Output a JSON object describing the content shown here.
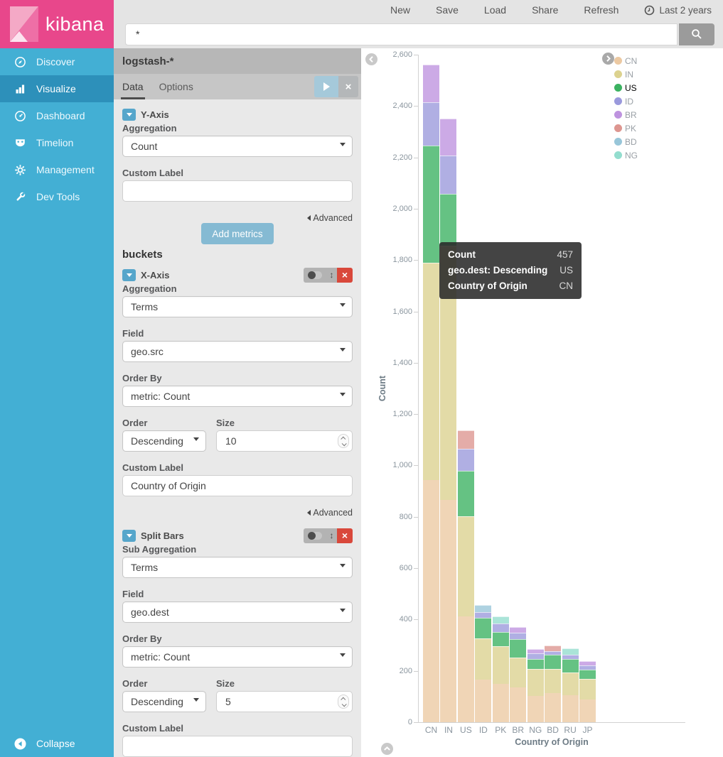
{
  "brand": "kibana",
  "topnav": {
    "items": [
      "New",
      "Save",
      "Load",
      "Share",
      "Refresh"
    ],
    "time_label": "Last 2 years"
  },
  "search": {
    "value": "*"
  },
  "sidebar": {
    "items": [
      {
        "label": "Discover",
        "icon": "compass-icon",
        "active": false
      },
      {
        "label": "Visualize",
        "icon": "bar-chart-icon",
        "active": true
      },
      {
        "label": "Dashboard",
        "icon": "dashboard-icon",
        "active": false
      },
      {
        "label": "Timelion",
        "icon": "mask-icon",
        "active": false
      },
      {
        "label": "Management",
        "icon": "gear-icon",
        "active": false
      },
      {
        "label": "Dev Tools",
        "icon": "wrench-icon",
        "active": false
      }
    ],
    "collapse_label": "Collapse"
  },
  "config": {
    "index_pattern": "logstash-*",
    "tabs": [
      {
        "label": "Data",
        "active": true
      },
      {
        "label": "Options",
        "active": false
      }
    ],
    "metrics": {
      "section_title": "Y-Axis",
      "aggregation_label": "Aggregation",
      "aggregation_value": "Count",
      "custom_label_label": "Custom Label",
      "custom_label_value": "",
      "advanced_label": "Advanced",
      "add_metrics_label": "Add metrics"
    },
    "buckets": {
      "heading": "buckets",
      "x_axis": {
        "section_title": "X-Axis",
        "aggregation_label": "Aggregation",
        "aggregation_value": "Terms",
        "field_label": "Field",
        "field_value": "geo.src",
        "order_by_label": "Order By",
        "order_by_value": "metric: Count",
        "order_label": "Order",
        "order_value": "Descending",
        "size_label": "Size",
        "size_value": "10",
        "custom_label_label": "Custom Label",
        "custom_label_value": "Country of Origin",
        "advanced_label": "Advanced"
      },
      "split_bars": {
        "section_title": "Split Bars",
        "sub_aggregation_label": "Sub Aggregation",
        "sub_aggregation_value": "Terms",
        "field_label": "Field",
        "field_value": "geo.dest",
        "order_by_label": "Order By",
        "order_by_value": "metric: Count",
        "order_label": "Order",
        "order_value": "Descending",
        "size_label": "Size",
        "size_value": "5",
        "custom_label_label": "Custom Label",
        "custom_label_value": ""
      }
    }
  },
  "tooltip": {
    "rows": [
      {
        "label": "Count",
        "value": "457"
      },
      {
        "label": "geo.dest: Descending",
        "value": "US"
      },
      {
        "label": "Country of Origin",
        "value": "CN"
      }
    ]
  },
  "chart_data": {
    "type": "bar",
    "stacked": true,
    "title": "",
    "xlabel": "Country of Origin",
    "ylabel": "Count",
    "ylim": [
      0,
      2600
    ],
    "ytick_interval": 200,
    "grid": false,
    "legend_position": "right",
    "categories": [
      "CN",
      "IN",
      "US",
      "ID",
      "PK",
      "BR",
      "NG",
      "BD",
      "RU",
      "JP"
    ],
    "colors": {
      "CN": "#ecc9a2",
      "IN": "#dcd28f",
      "US": "#3bb261",
      "ID": "#9a99dc",
      "BR": "#be93df",
      "PK": "#dd9690",
      "BD": "#98c6d9",
      "NG": "#93ddce"
    },
    "legend": [
      {
        "label": "CN",
        "highlight": false
      },
      {
        "label": "IN",
        "highlight": false
      },
      {
        "label": "US",
        "highlight": true
      },
      {
        "label": "ID",
        "highlight": false
      },
      {
        "label": "BR",
        "highlight": false
      },
      {
        "label": "PK",
        "highlight": false
      },
      {
        "label": "BD",
        "highlight": false
      },
      {
        "label": "NG",
        "highlight": false
      }
    ],
    "bars": [
      {
        "category": "CN",
        "segments": [
          {
            "dest": "CN",
            "value": 943
          },
          {
            "dest": "IN",
            "value": 847
          },
          {
            "dest": "US",
            "value": 457
          },
          {
            "dest": "ID",
            "value": 169
          },
          {
            "dest": "BR",
            "value": 144
          }
        ]
      },
      {
        "category": "IN",
        "segments": [
          {
            "dest": "CN",
            "value": 866
          },
          {
            "dest": "IN",
            "value": 989
          },
          {
            "dest": "US",
            "value": 203
          },
          {
            "dest": "ID",
            "value": 149
          },
          {
            "dest": "BR",
            "value": 143
          }
        ]
      },
      {
        "category": "US",
        "segments": [
          {
            "dest": "CN",
            "value": 412
          },
          {
            "dest": "IN",
            "value": 390
          },
          {
            "dest": "US",
            "value": 177
          },
          {
            "dest": "ID",
            "value": 85
          },
          {
            "dest": "PK",
            "value": 73
          }
        ]
      },
      {
        "category": "ID",
        "segments": [
          {
            "dest": "CN",
            "value": 166
          },
          {
            "dest": "IN",
            "value": 160
          },
          {
            "dest": "US",
            "value": 81
          },
          {
            "dest": "ID",
            "value": 22
          },
          {
            "dest": "BD",
            "value": 27
          }
        ]
      },
      {
        "category": "PK",
        "segments": [
          {
            "dest": "CN",
            "value": 149
          },
          {
            "dest": "IN",
            "value": 147
          },
          {
            "dest": "US",
            "value": 55
          },
          {
            "dest": "ID",
            "value": 34
          },
          {
            "dest": "NG",
            "value": 27
          }
        ]
      },
      {
        "category": "BR",
        "segments": [
          {
            "dest": "CN",
            "value": 136
          },
          {
            "dest": "IN",
            "value": 116
          },
          {
            "dest": "US",
            "value": 72
          },
          {
            "dest": "ID",
            "value": 25
          },
          {
            "dest": "BR",
            "value": 22
          }
        ]
      },
      {
        "category": "NG",
        "segments": [
          {
            "dest": "CN",
            "value": 102
          },
          {
            "dest": "IN",
            "value": 105
          },
          {
            "dest": "US",
            "value": 39
          },
          {
            "dest": "ID",
            "value": 22
          },
          {
            "dest": "BR",
            "value": 17
          }
        ]
      },
      {
        "category": "BD",
        "segments": [
          {
            "dest": "CN",
            "value": 113
          },
          {
            "dest": "IN",
            "value": 94
          },
          {
            "dest": "US",
            "value": 56
          },
          {
            "dest": "ID",
            "value": 14
          },
          {
            "dest": "PK",
            "value": 22
          }
        ]
      },
      {
        "category": "RU",
        "segments": [
          {
            "dest": "CN",
            "value": 105
          },
          {
            "dest": "IN",
            "value": 88
          },
          {
            "dest": "US",
            "value": 52
          },
          {
            "dest": "ID",
            "value": 17
          },
          {
            "dest": "NG",
            "value": 25
          }
        ]
      },
      {
        "category": "JP",
        "segments": [
          {
            "dest": "CN",
            "value": 88
          },
          {
            "dest": "IN",
            "value": 80
          },
          {
            "dest": "US",
            "value": 37
          },
          {
            "dest": "ID",
            "value": 17
          },
          {
            "dest": "BR",
            "value": 16
          }
        ]
      }
    ]
  }
}
